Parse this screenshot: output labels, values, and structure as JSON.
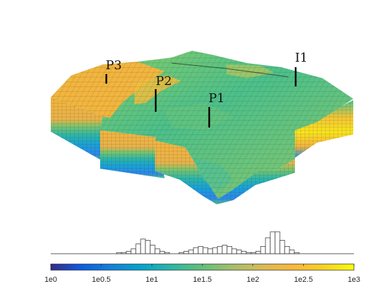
{
  "wells": [
    {
      "name": "P3"
    },
    {
      "name": "P2"
    },
    {
      "name": "P1"
    },
    {
      "name": "I1"
    }
  ],
  "colorbar": {
    "colormap": "parula",
    "scale": "log",
    "tick_labels": [
      "1e0",
      "1e0.5",
      "1e1",
      "1e1.5",
      "1e2",
      "1e2.5",
      "1e3"
    ]
  },
  "histogram": {
    "bin_counts": [
      1,
      1,
      2,
      4,
      8,
      12,
      11,
      7,
      4,
      2,
      1,
      0,
      0,
      1,
      2,
      3,
      5,
      6,
      5,
      4,
      5,
      6,
      7,
      6,
      4,
      3,
      2,
      1,
      1,
      2,
      6,
      13,
      18,
      18,
      11,
      6,
      3,
      1
    ]
  },
  "colors": {
    "mesh_line": "#3a3a3a",
    "well": "#000000",
    "hist_edge": "#222222"
  }
}
